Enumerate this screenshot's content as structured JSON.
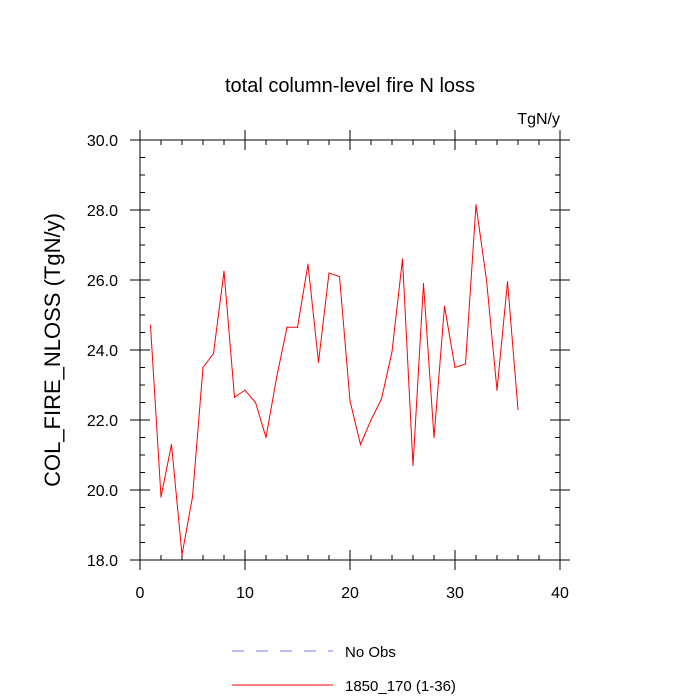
{
  "chart_data": {
    "type": "line",
    "title": "total column-level fire N loss",
    "units": "TgN/y",
    "xlabel": "",
    "ylabel": "COL_FIRE_NLOSS  (TgN/y)",
    "xlim": [
      0,
      40
    ],
    "ylim": [
      18.0,
      30.0
    ],
    "x_ticks": [
      0,
      10,
      20,
      30,
      40
    ],
    "x_tick_labels": [
      "0",
      "10",
      "20",
      "30",
      "40"
    ],
    "y_ticks": [
      18.0,
      20.0,
      22.0,
      24.0,
      26.0,
      28.0,
      30.0
    ],
    "y_tick_labels": [
      "18.0",
      "20.0",
      "22.0",
      "24.0",
      "26.0",
      "28.0",
      "30.0"
    ],
    "grid": false,
    "legend_position": "bottom",
    "series": [
      {
        "name": "No Obs",
        "color": "#7777ff",
        "dash": "dashed",
        "x": [],
        "y": []
      },
      {
        "name": "1850_170 (1-36)",
        "color": "#ff0000",
        "dash": "solid",
        "x": [
          1,
          2,
          3,
          4,
          5,
          6,
          7,
          8,
          9,
          10,
          11,
          12,
          13,
          14,
          15,
          16,
          17,
          18,
          19,
          20,
          21,
          22,
          23,
          24,
          25,
          26,
          27,
          28,
          29,
          30,
          31,
          32,
          33,
          34,
          35,
          36
        ],
        "y": [
          24.7,
          19.8,
          21.3,
          18.15,
          19.8,
          23.5,
          23.9,
          26.25,
          22.65,
          22.85,
          22.5,
          21.5,
          23.2,
          24.65,
          24.65,
          26.45,
          23.65,
          26.2,
          26.1,
          22.55,
          21.3,
          22.0,
          22.6,
          23.95,
          26.6,
          20.7,
          25.9,
          21.5,
          25.25,
          23.5,
          23.6,
          28.15,
          26.0,
          22.85,
          25.95,
          22.3
        ]
      }
    ]
  }
}
